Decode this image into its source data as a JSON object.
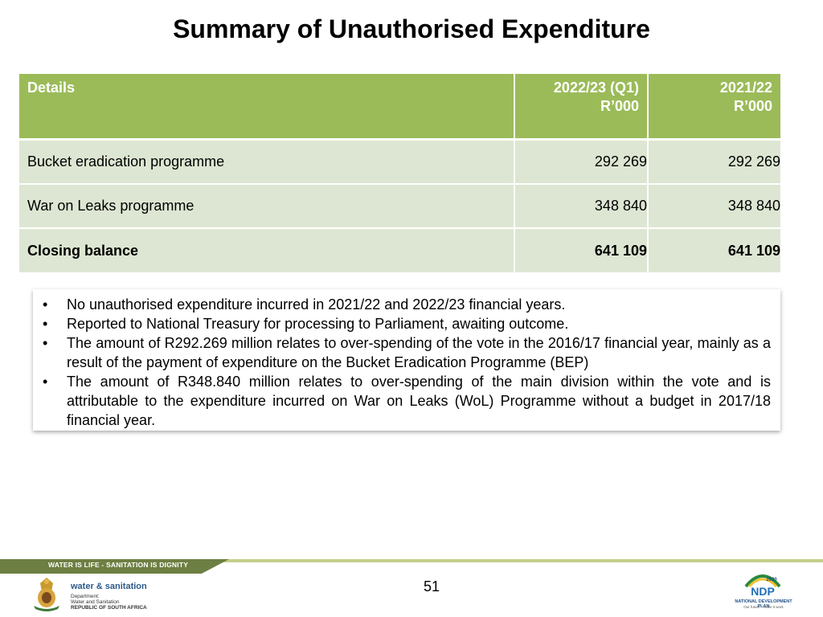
{
  "title": "Summary of Unauthorised Expenditure",
  "table": {
    "headers": {
      "details": "Details",
      "col1_line1": "2022/23 (Q1)",
      "col1_line2": "R’000",
      "col2_line1": "2021/22",
      "col2_line2": "R’000"
    },
    "rows": [
      {
        "label": "Bucket eradication programme",
        "v1": "292 269",
        "v2": "292 269"
      },
      {
        "label": "War on Leaks programme",
        "v1": "348 840",
        "v2": "348 840"
      },
      {
        "label": "Closing balance",
        "v1": "641 109",
        "v2": "641 109"
      }
    ]
  },
  "notes": [
    "No unauthorised expenditure incurred in 2021/22 and 2022/23 financial years.",
    "Reported to National Treasury for processing to Parliament, awaiting outcome.",
    "The amount of R292.269 million relates to over-spending of the vote in the 2016/17 financial year, mainly as a result of the payment of expenditure on the Bucket Eradication Programme (BEP)",
    "The amount of R348.840 million relates to over-spending of the main division within the vote and is attributable to the expenditure incurred on War on Leaks (WoL) Programme without a budget in 2017/18 financial year."
  ],
  "bullet": "•",
  "footer": {
    "tagline": "WATER IS LIFE - SANITATION IS DIGNITY",
    "page_number": "51",
    "dept_name": "water & sanitation",
    "dept_line1": "Department:",
    "dept_line2": "Water and Sanitation",
    "dept_line3": "REPUBLIC OF SOUTH AFRICA",
    "ndp_year": "2030",
    "ndp_mark": "NDP",
    "ndp_name": "NATIONAL DEVELOPMENT PLAN",
    "ndp_slogan": "Our future - make it work"
  },
  "colors": {
    "header_green": "#9bbb59",
    "row_fill": "#dde6d2",
    "footer_dark": "#6d7f42",
    "footer_light": "#c3d08b"
  }
}
